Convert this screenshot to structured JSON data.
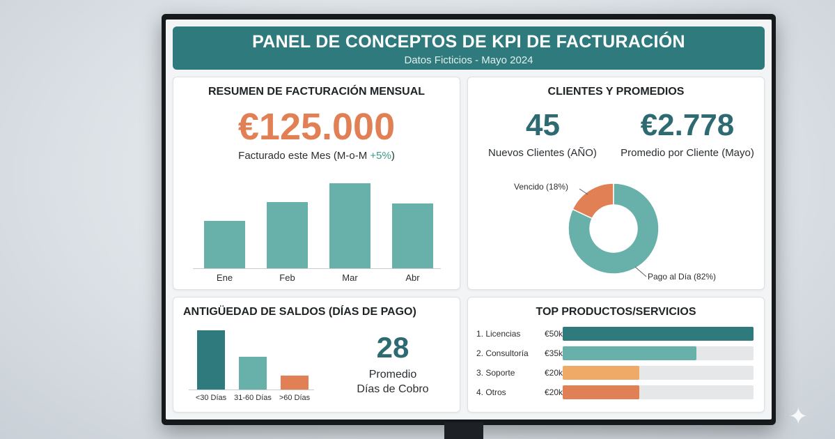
{
  "dashboard": {
    "title": "PANEL DE CONCEPTOS DE KPI DE FACTURACIÓN",
    "subtitle": "Datos Ficticios - Mayo 2024"
  },
  "monthly": {
    "title": "RESUMEN DE FACTURACIÓN MENSUAL",
    "value": "€125.000",
    "caption_prefix": "Facturado este Mes (M-o-M ",
    "caption_delta": "+5%",
    "caption_suffix": ")"
  },
  "clients": {
    "title": "CLIENTES Y PROMEDIOS",
    "new_clients_value": "45",
    "new_clients_label": "Nuevos Clientes (AÑO)",
    "avg_value": "€2.778",
    "avg_label": "Promedio por Cliente (Mayo)"
  },
  "aging": {
    "title": "ANTIGÜEDAD DE SALDOS (DÍAS DE PAGO)",
    "avg_days_value": "28",
    "avg_days_label_1": "Promedio",
    "avg_days_label_2": "Días de Cobro"
  },
  "products": {
    "title": "TOP PRODUCTOS/SERVICIOS",
    "items": [
      {
        "name": "1. Licencias",
        "amount": "€50k",
        "value": 50,
        "color": "#2f7a7c"
      },
      {
        "name": "2. Consultoría",
        "amount": "€35k",
        "value": 35,
        "color": "#68b1aa"
      },
      {
        "name": "3. Soporte",
        "amount": "€20k",
        "value": 20,
        "color": "#f0aa68"
      },
      {
        "name": "4. Otros",
        "amount": "€20k",
        "value": 20,
        "color": "#e17f55"
      }
    ]
  },
  "chart_data": [
    {
      "type": "bar",
      "categories": [
        "Ene",
        "Feb",
        "Mar",
        "Abr"
      ],
      "values": [
        68,
        95,
        122,
        93
      ],
      "ylim": [
        0,
        130
      ],
      "color": "#68b1aa"
    },
    {
      "type": "pie",
      "labels": [
        "Vencido (18%)",
        "Pago al Día (82%)"
      ],
      "values": [
        18,
        82
      ],
      "colors": [
        "#e17f55",
        "#68b1aa"
      ]
    },
    {
      "type": "bar",
      "categories": [
        "<30 Días",
        "31-60 Días",
        ">60 Días"
      ],
      "values": [
        90,
        50,
        21
      ],
      "ylim": [
        0,
        100
      ],
      "colors": [
        "#2f7a7c",
        "#68b1aa",
        "#e17f55"
      ]
    }
  ]
}
